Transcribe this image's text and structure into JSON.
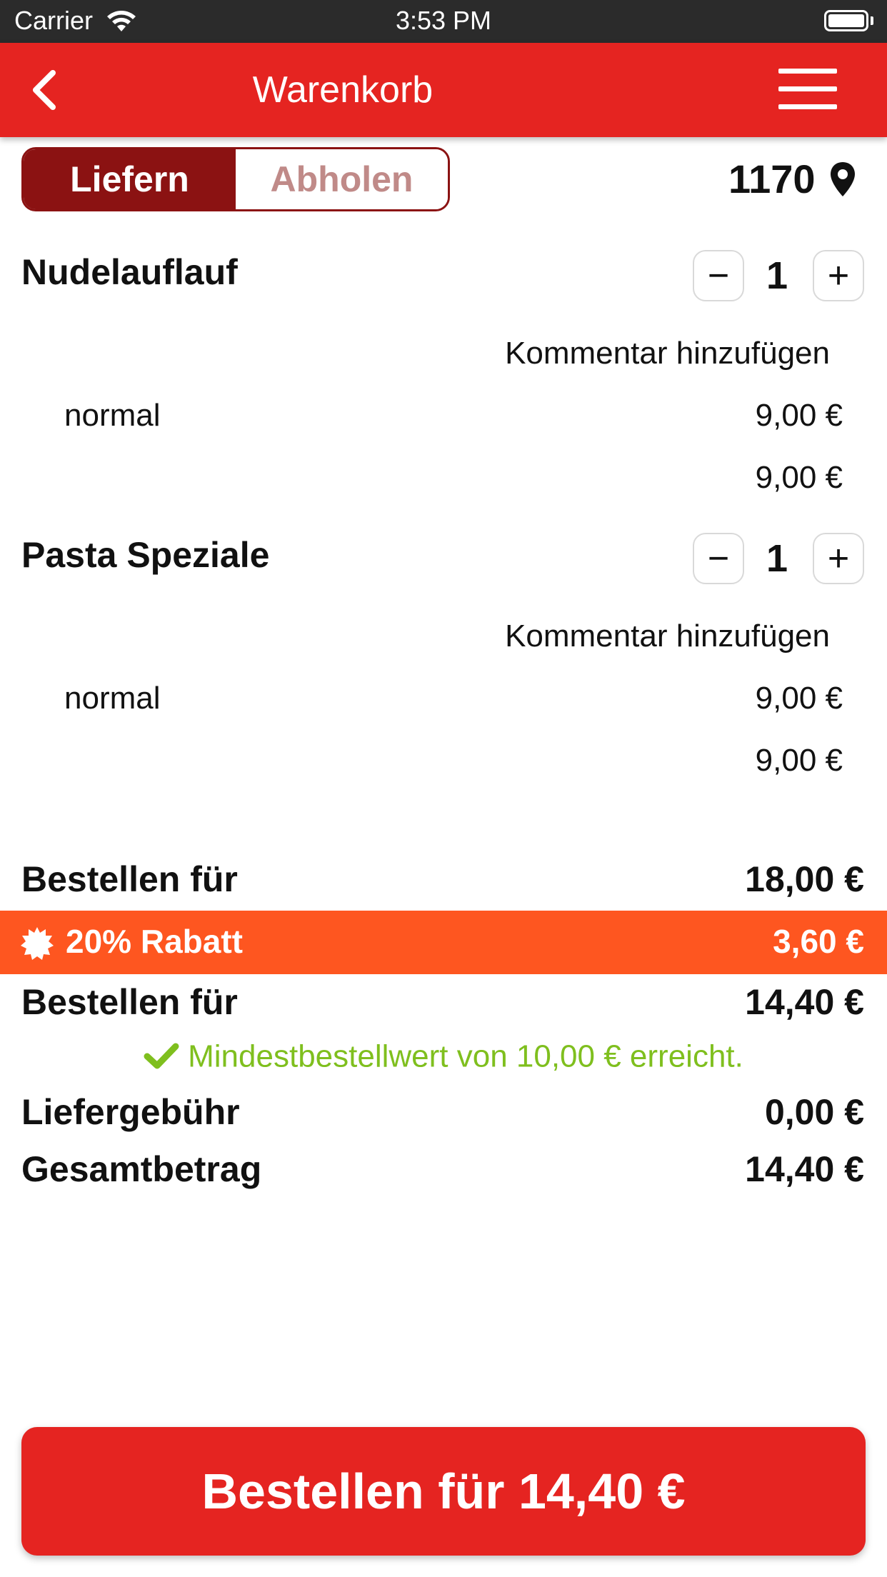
{
  "status_bar": {
    "carrier": "Carrier",
    "time": "3:53 PM"
  },
  "nav": {
    "title": "Warenkorb"
  },
  "mode": {
    "deliver": "Liefern",
    "pickup": "Abholen"
  },
  "location": {
    "zip": "1170"
  },
  "items": [
    {
      "name": "Nudelauflauf",
      "qty": "1",
      "comment": "Kommentar hinzufügen",
      "variant": "normal",
      "variant_price": "9,00 €",
      "item_total": "9,00 €"
    },
    {
      "name": "Pasta Speziale",
      "qty": "1",
      "comment": "Kommentar hinzufügen",
      "variant": "normal",
      "variant_price": "9,00 €",
      "item_total": "9,00 €"
    }
  ],
  "summary": {
    "subtotal_label": "Bestellen für",
    "subtotal_value": "18,00 €",
    "discount_label": "20% Rabatt",
    "discount_value": "3,60 €",
    "after_discount_label": "Bestellen für",
    "after_discount_value": "14,40 €",
    "min_order_note": "Mindestbestellwert von 10,00 € erreicht.",
    "delivery_fee_label": "Liefergebühr",
    "delivery_fee_value": "0,00 €",
    "total_label": "Gesamtbetrag",
    "total_value": "14,40 €"
  },
  "cta": {
    "label": "Bestellen für 14,40 €"
  },
  "colors": {
    "brand_red": "#e52421",
    "dark_red": "#8b1212",
    "discount_orange": "#fe5620",
    "success_green": "#7fbf1e"
  },
  "icons": [
    "wifi-icon",
    "battery-icon",
    "back-chevron-icon",
    "menu-icon",
    "location-pin-icon",
    "minus-icon",
    "plus-icon",
    "discount-badge-icon",
    "checkmark-icon"
  ]
}
